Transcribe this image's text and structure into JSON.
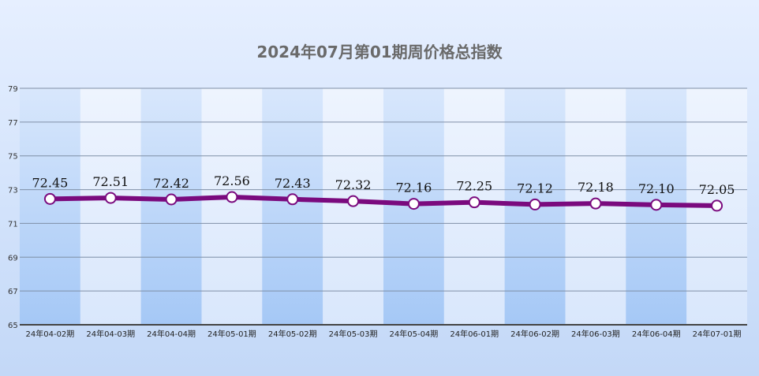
{
  "chart_data": {
    "type": "line",
    "title": "2024年07月第01期周价格总指数",
    "categories": [
      "24年04-02期",
      "24年04-03期",
      "24年04-04期",
      "24年05-01期",
      "24年05-02期",
      "24年05-03期",
      "24年05-04期",
      "24年06-01期",
      "24年06-02期",
      "24年06-03期",
      "24年06-04期",
      "24年07-01期"
    ],
    "values": [
      72.45,
      72.51,
      72.42,
      72.56,
      72.43,
      72.32,
      72.16,
      72.25,
      72.12,
      72.18,
      72.1,
      72.05
    ],
    "value_labels": [
      "72.45",
      "72.51",
      "72.42",
      "72.56",
      "72.43",
      "72.32",
      "72.16",
      "72.25",
      "72.12",
      "72.18",
      "72.10",
      "72.05"
    ],
    "ylim": [
      65,
      79
    ],
    "yticks": [
      "65",
      "67",
      "69",
      "71",
      "73",
      "75",
      "77",
      "79"
    ],
    "grid": true,
    "colors": {
      "line": "#7a0a7e",
      "marker_fill": "#ffffff",
      "band_dark": "#a9cbf5",
      "band_light": "#e4eefd"
    }
  }
}
